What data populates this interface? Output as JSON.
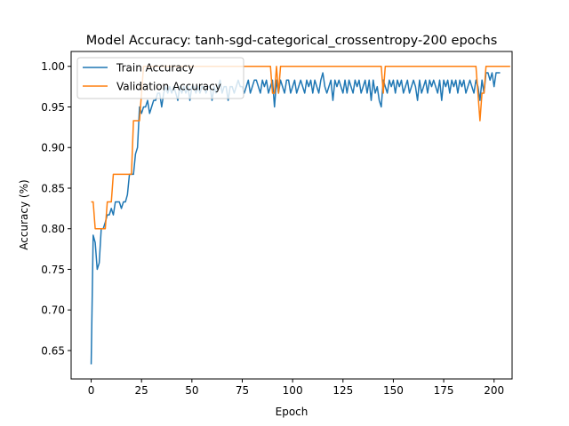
{
  "chart_data": {
    "type": "line",
    "title": "Model Accuracy: tanh-sgd-categorical_crossentropy-200 epochs",
    "xlabel": "Epoch",
    "ylabel": "Accuracy (%)",
    "xlim": [
      -9.95,
      208.95
    ],
    "ylim": [
      0.615,
      1.0183
    ],
    "xticks": [
      0,
      25,
      50,
      75,
      100,
      125,
      150,
      175,
      200
    ],
    "yticks": [
      0.65,
      0.7,
      0.75,
      0.8,
      0.85,
      0.9,
      0.95,
      1.0
    ],
    "ytick_labels": [
      "0.65",
      "0.70",
      "0.75",
      "0.80",
      "0.85",
      "0.90",
      "0.95",
      "1.00"
    ],
    "grid": false,
    "legend_position": "top-left",
    "series": [
      {
        "name": "Train Accuracy",
        "color": "#1f77b4",
        "values": [
          0.633,
          0.792,
          0.783,
          0.75,
          0.758,
          0.8,
          0.8,
          0.808,
          0.817,
          0.817,
          0.825,
          0.817,
          0.833,
          0.833,
          0.833,
          0.825,
          0.833,
          0.833,
          0.842,
          0.867,
          0.867,
          0.867,
          0.892,
          0.9,
          0.95,
          0.942,
          0.95,
          0.95,
          0.958,
          0.942,
          0.95,
          0.958,
          0.958,
          0.967,
          0.967,
          0.95,
          0.967,
          0.975,
          0.967,
          0.975,
          0.967,
          0.975,
          0.967,
          0.958,
          0.975,
          0.967,
          0.975,
          0.967,
          0.975,
          0.958,
          0.975,
          0.975,
          0.967,
          0.975,
          0.967,
          0.975,
          0.975,
          0.967,
          0.975,
          0.975,
          0.958,
          0.975,
          0.967,
          0.975,
          0.983,
          0.967,
          0.975,
          0.975,
          0.958,
          0.975,
          0.975,
          0.967,
          0.975,
          0.983,
          0.975,
          0.975,
          0.967,
          0.975,
          0.983,
          0.967,
          0.975,
          0.983,
          0.983,
          0.975,
          0.967,
          0.983,
          0.975,
          0.983,
          0.967,
          0.975,
          0.983,
          0.95,
          0.983,
          0.967,
          0.983,
          0.975,
          0.967,
          0.983,
          0.983,
          0.967,
          0.975,
          0.983,
          0.967,
          0.975,
          0.983,
          0.975,
          0.967,
          0.983,
          0.975,
          0.983,
          0.967,
          0.983,
          0.975,
          0.967,
          0.983,
          0.992,
          0.975,
          0.967,
          0.975,
          0.983,
          0.958,
          0.983,
          0.975,
          0.983,
          0.975,
          0.967,
          0.983,
          0.967,
          0.983,
          0.975,
          0.967,
          0.983,
          0.975,
          0.983,
          0.967,
          0.975,
          0.983,
          0.967,
          0.983,
          0.958,
          0.983,
          0.967,
          0.975,
          0.958,
          0.95,
          0.983,
          0.975,
          0.967,
          0.983,
          0.975,
          0.983,
          0.967,
          0.983,
          0.975,
          0.983,
          0.967,
          0.975,
          0.983,
          0.967,
          0.975,
          0.983,
          0.975,
          0.958,
          0.983,
          0.967,
          0.975,
          0.983,
          0.967,
          0.983,
          0.975,
          0.983,
          0.975,
          0.967,
          0.983,
          0.958,
          0.983,
          0.975,
          0.983,
          0.967,
          0.983,
          0.975,
          0.983,
          0.967,
          0.983,
          0.975,
          0.983,
          0.967,
          0.975,
          0.983,
          0.975,
          0.967,
          0.983,
          0.975,
          0.958,
          0.983,
          0.967,
          0.992,
          0.992,
          0.983,
          0.992,
          0.975,
          0.992,
          0.992,
          0.992
        ]
      },
      {
        "name": "Validation Accuracy",
        "color": "#ff7f0e",
        "values": [
          0.833,
          0.833,
          0.8,
          0.8,
          0.8,
          0.8,
          0.8,
          0.8,
          0.833,
          0.833,
          0.833,
          0.867,
          0.867,
          0.867,
          0.867,
          0.867,
          0.867,
          0.867,
          0.867,
          0.867,
          0.867,
          0.933,
          0.933,
          0.933,
          0.933,
          0.967,
          1.0,
          1.0,
          1.0,
          1.0,
          1.0,
          1.0,
          1.0,
          1.0,
          1.0,
          1.0,
          1.0,
          1.0,
          1.0,
          1.0,
          1.0,
          1.0,
          1.0,
          1.0,
          1.0,
          1.0,
          1.0,
          1.0,
          1.0,
          1.0,
          1.0,
          1.0,
          1.0,
          1.0,
          1.0,
          1.0,
          1.0,
          1.0,
          1.0,
          1.0,
          1.0,
          1.0,
          1.0,
          1.0,
          1.0,
          1.0,
          1.0,
          1.0,
          1.0,
          1.0,
          1.0,
          1.0,
          1.0,
          1.0,
          1.0,
          1.0,
          1.0,
          1.0,
          1.0,
          1.0,
          1.0,
          1.0,
          1.0,
          1.0,
          1.0,
          1.0,
          1.0,
          1.0,
          1.0,
          1.0,
          0.967,
          0.967,
          1.0,
          0.967,
          1.0,
          1.0,
          1.0,
          1.0,
          1.0,
          1.0,
          1.0,
          1.0,
          1.0,
          1.0,
          1.0,
          1.0,
          1.0,
          1.0,
          1.0,
          1.0,
          1.0,
          1.0,
          1.0,
          1.0,
          1.0,
          1.0,
          1.0,
          1.0,
          1.0,
          1.0,
          1.0,
          1.0,
          1.0,
          1.0,
          1.0,
          1.0,
          1.0,
          1.0,
          1.0,
          1.0,
          1.0,
          1.0,
          1.0,
          1.0,
          1.0,
          1.0,
          1.0,
          1.0,
          1.0,
          1.0,
          1.0,
          1.0,
          1.0,
          1.0,
          1.0,
          0.967,
          1.0,
          1.0,
          1.0,
          1.0,
          1.0,
          1.0,
          1.0,
          1.0,
          1.0,
          1.0,
          1.0,
          1.0,
          1.0,
          1.0,
          1.0,
          1.0,
          1.0,
          1.0,
          1.0,
          1.0,
          1.0,
          1.0,
          1.0,
          1.0,
          1.0,
          1.0,
          1.0,
          1.0,
          1.0,
          1.0,
          1.0,
          1.0,
          1.0,
          1.0,
          1.0,
          1.0,
          1.0,
          1.0,
          1.0,
          1.0,
          1.0,
          1.0,
          1.0,
          1.0,
          1.0,
          1.0,
          0.967,
          0.933,
          0.967,
          0.967,
          1.0,
          1.0,
          1.0,
          1.0,
          1.0,
          1.0,
          1.0,
          1.0,
          1.0,
          1.0,
          1.0,
          1.0,
          1.0
        ]
      }
    ]
  }
}
